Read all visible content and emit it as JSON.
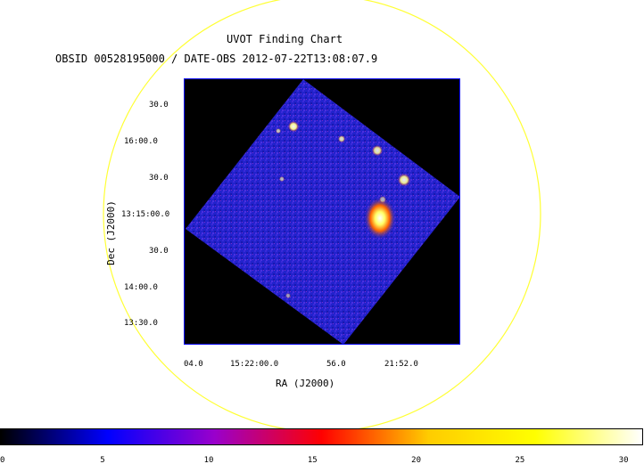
{
  "header": {
    "title": "UVOT Finding Chart",
    "subtitle": "OBSID 00528195000 / DATE-OBS 2012-07-22T13:08:07.9"
  },
  "axes": {
    "x_label": "RA (J2000)",
    "y_label": "Dec (J2000)",
    "x_ticks": [
      "04.0",
      "15:22:00.0",
      "56.0",
      "21:52.0"
    ],
    "y_ticks": [
      "30.0",
      "16:00.0",
      "30.0",
      "13:15:00.0",
      "30.0",
      "14:00.0",
      "13:30.0"
    ]
  },
  "colorbar": {
    "ticks": [
      "0",
      "5",
      "10",
      "15",
      "20",
      "25",
      "30"
    ],
    "min": 0,
    "max": 31,
    "colors": [
      "#000000",
      "#0000ff",
      "#9900cc",
      "#ff0000",
      "#ffcc00",
      "#ffff00",
      "#ffffff"
    ]
  },
  "colors": {
    "fov_circle": "#ffff33",
    "frame_border": "#0000ff",
    "field_background": "#2020c8"
  },
  "sources": [
    {
      "ra_dec_label": "",
      "brightness": 0.95
    },
    {
      "ra_dec_label": "",
      "brightness": 0.9
    },
    {
      "ra_dec_label": "",
      "brightness": 0.85
    },
    {
      "ra_dec_label": "",
      "brightness": 0.8
    },
    {
      "ra_dec_label": "",
      "brightness": 0.7
    },
    {
      "ra_dec_label": "",
      "brightness": 0.65
    },
    {
      "ra_dec_label": "",
      "brightness": 0.6
    },
    {
      "ra_dec_label": "",
      "brightness": 0.55
    }
  ]
}
